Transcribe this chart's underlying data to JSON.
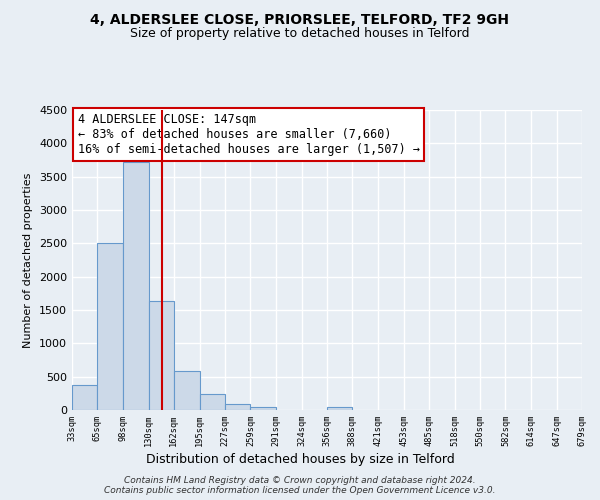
{
  "title": "4, ALDERSLEE CLOSE, PRIORSLEE, TELFORD, TF2 9GH",
  "subtitle": "Size of property relative to detached houses in Telford",
  "xlabel": "Distribution of detached houses by size in Telford",
  "ylabel": "Number of detached properties",
  "bar_color": "#ccd9e8",
  "bar_edge_color": "#6699cc",
  "vline_x": 147,
  "vline_color": "#cc0000",
  "annotation_title": "4 ALDERSLEE CLOSE: 147sqm",
  "annotation_line1": "← 83% of detached houses are smaller (7,660)",
  "annotation_line2": "16% of semi-detached houses are larger (1,507) →",
  "annotation_box_facecolor": "#ffffff",
  "annotation_box_edgecolor": "#cc0000",
  "bin_edges": [
    33,
    65,
    98,
    130,
    162,
    195,
    227,
    259,
    291,
    324,
    356,
    388,
    421,
    453,
    485,
    518,
    550,
    582,
    614,
    647,
    679
  ],
  "bin_heights": [
    380,
    2500,
    3720,
    1630,
    590,
    245,
    90,
    50,
    0,
    0,
    50,
    0,
    0,
    0,
    0,
    0,
    0,
    0,
    0,
    0
  ],
  "ylim": [
    0,
    4500
  ],
  "yticks": [
    0,
    500,
    1000,
    1500,
    2000,
    2500,
    3000,
    3500,
    4000,
    4500
  ],
  "background_color": "#e8eef4",
  "grid_color": "#ffffff",
  "footer_line1": "Contains HM Land Registry data © Crown copyright and database right 2024.",
  "footer_line2": "Contains public sector information licensed under the Open Government Licence v3.0."
}
